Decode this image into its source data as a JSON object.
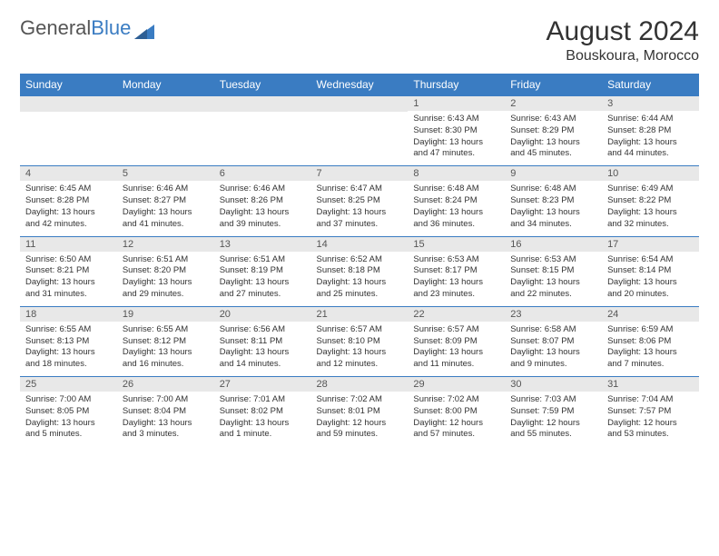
{
  "colors": {
    "accent": "#3a7cc2",
    "daynum_bg": "#e8e8e8",
    "text": "#333333",
    "bg": "#ffffff"
  },
  "logo": {
    "part1": "General",
    "part2": "Blue"
  },
  "title": {
    "month": "August 2024",
    "location": "Bouskoura, Morocco"
  },
  "dayHeaders": [
    "Sunday",
    "Monday",
    "Tuesday",
    "Wednesday",
    "Thursday",
    "Friday",
    "Saturday"
  ],
  "weeks": [
    [
      {
        "n": "",
        "lines": []
      },
      {
        "n": "",
        "lines": []
      },
      {
        "n": "",
        "lines": []
      },
      {
        "n": "",
        "lines": []
      },
      {
        "n": "1",
        "lines": [
          "Sunrise: 6:43 AM",
          "Sunset: 8:30 PM",
          "Daylight: 13 hours and 47 minutes."
        ]
      },
      {
        "n": "2",
        "lines": [
          "Sunrise: 6:43 AM",
          "Sunset: 8:29 PM",
          "Daylight: 13 hours and 45 minutes."
        ]
      },
      {
        "n": "3",
        "lines": [
          "Sunrise: 6:44 AM",
          "Sunset: 8:28 PM",
          "Daylight: 13 hours and 44 minutes."
        ]
      }
    ],
    [
      {
        "n": "4",
        "lines": [
          "Sunrise: 6:45 AM",
          "Sunset: 8:28 PM",
          "Daylight: 13 hours and 42 minutes."
        ]
      },
      {
        "n": "5",
        "lines": [
          "Sunrise: 6:46 AM",
          "Sunset: 8:27 PM",
          "Daylight: 13 hours and 41 minutes."
        ]
      },
      {
        "n": "6",
        "lines": [
          "Sunrise: 6:46 AM",
          "Sunset: 8:26 PM",
          "Daylight: 13 hours and 39 minutes."
        ]
      },
      {
        "n": "7",
        "lines": [
          "Sunrise: 6:47 AM",
          "Sunset: 8:25 PM",
          "Daylight: 13 hours and 37 minutes."
        ]
      },
      {
        "n": "8",
        "lines": [
          "Sunrise: 6:48 AM",
          "Sunset: 8:24 PM",
          "Daylight: 13 hours and 36 minutes."
        ]
      },
      {
        "n": "9",
        "lines": [
          "Sunrise: 6:48 AM",
          "Sunset: 8:23 PM",
          "Daylight: 13 hours and 34 minutes."
        ]
      },
      {
        "n": "10",
        "lines": [
          "Sunrise: 6:49 AM",
          "Sunset: 8:22 PM",
          "Daylight: 13 hours and 32 minutes."
        ]
      }
    ],
    [
      {
        "n": "11",
        "lines": [
          "Sunrise: 6:50 AM",
          "Sunset: 8:21 PM",
          "Daylight: 13 hours and 31 minutes."
        ]
      },
      {
        "n": "12",
        "lines": [
          "Sunrise: 6:51 AM",
          "Sunset: 8:20 PM",
          "Daylight: 13 hours and 29 minutes."
        ]
      },
      {
        "n": "13",
        "lines": [
          "Sunrise: 6:51 AM",
          "Sunset: 8:19 PM",
          "Daylight: 13 hours and 27 minutes."
        ]
      },
      {
        "n": "14",
        "lines": [
          "Sunrise: 6:52 AM",
          "Sunset: 8:18 PM",
          "Daylight: 13 hours and 25 minutes."
        ]
      },
      {
        "n": "15",
        "lines": [
          "Sunrise: 6:53 AM",
          "Sunset: 8:17 PM",
          "Daylight: 13 hours and 23 minutes."
        ]
      },
      {
        "n": "16",
        "lines": [
          "Sunrise: 6:53 AM",
          "Sunset: 8:15 PM",
          "Daylight: 13 hours and 22 minutes."
        ]
      },
      {
        "n": "17",
        "lines": [
          "Sunrise: 6:54 AM",
          "Sunset: 8:14 PM",
          "Daylight: 13 hours and 20 minutes."
        ]
      }
    ],
    [
      {
        "n": "18",
        "lines": [
          "Sunrise: 6:55 AM",
          "Sunset: 8:13 PM",
          "Daylight: 13 hours and 18 minutes."
        ]
      },
      {
        "n": "19",
        "lines": [
          "Sunrise: 6:55 AM",
          "Sunset: 8:12 PM",
          "Daylight: 13 hours and 16 minutes."
        ]
      },
      {
        "n": "20",
        "lines": [
          "Sunrise: 6:56 AM",
          "Sunset: 8:11 PM",
          "Daylight: 13 hours and 14 minutes."
        ]
      },
      {
        "n": "21",
        "lines": [
          "Sunrise: 6:57 AM",
          "Sunset: 8:10 PM",
          "Daylight: 13 hours and 12 minutes."
        ]
      },
      {
        "n": "22",
        "lines": [
          "Sunrise: 6:57 AM",
          "Sunset: 8:09 PM",
          "Daylight: 13 hours and 11 minutes."
        ]
      },
      {
        "n": "23",
        "lines": [
          "Sunrise: 6:58 AM",
          "Sunset: 8:07 PM",
          "Daylight: 13 hours and 9 minutes."
        ]
      },
      {
        "n": "24",
        "lines": [
          "Sunrise: 6:59 AM",
          "Sunset: 8:06 PM",
          "Daylight: 13 hours and 7 minutes."
        ]
      }
    ],
    [
      {
        "n": "25",
        "lines": [
          "Sunrise: 7:00 AM",
          "Sunset: 8:05 PM",
          "Daylight: 13 hours and 5 minutes."
        ]
      },
      {
        "n": "26",
        "lines": [
          "Sunrise: 7:00 AM",
          "Sunset: 8:04 PM",
          "Daylight: 13 hours and 3 minutes."
        ]
      },
      {
        "n": "27",
        "lines": [
          "Sunrise: 7:01 AM",
          "Sunset: 8:02 PM",
          "Daylight: 13 hours and 1 minute."
        ]
      },
      {
        "n": "28",
        "lines": [
          "Sunrise: 7:02 AM",
          "Sunset: 8:01 PM",
          "Daylight: 12 hours and 59 minutes."
        ]
      },
      {
        "n": "29",
        "lines": [
          "Sunrise: 7:02 AM",
          "Sunset: 8:00 PM",
          "Daylight: 12 hours and 57 minutes."
        ]
      },
      {
        "n": "30",
        "lines": [
          "Sunrise: 7:03 AM",
          "Sunset: 7:59 PM",
          "Daylight: 12 hours and 55 minutes."
        ]
      },
      {
        "n": "31",
        "lines": [
          "Sunrise: 7:04 AM",
          "Sunset: 7:57 PM",
          "Daylight: 12 hours and 53 minutes."
        ]
      }
    ]
  ]
}
